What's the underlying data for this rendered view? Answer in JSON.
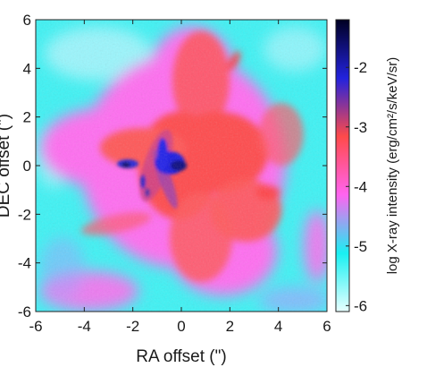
{
  "chart_data": {
    "type": "heatmap",
    "title": "",
    "xlabel": "RA offset (\")",
    "ylabel": "DEC offset (\")",
    "xlim": [
      -6,
      6
    ],
    "ylim": [
      -6,
      6
    ],
    "xticks": [
      -6,
      -4,
      -2,
      0,
      2,
      4,
      6
    ],
    "yticks": [
      -6,
      -4,
      -2,
      0,
      2,
      4,
      6
    ],
    "xtick_labels": [
      "-6",
      "-4",
      "-2",
      "0",
      "2",
      "4",
      "6"
    ],
    "ytick_labels": [
      "-6",
      "-4",
      "-2",
      "0",
      "2",
      "4",
      "6"
    ],
    "grid": false,
    "colorbar": {
      "label": "log X-ray intensity (erg/cm²/s/keV/sr)",
      "range": [
        -6.1,
        -1.2
      ],
      "ticks": [
        -6,
        -5,
        -4,
        -3,
        -2
      ],
      "tick_labels": [
        "-6",
        "-5",
        "-4",
        "-3",
        "-2"
      ],
      "colors": [
        "#e8ffff",
        "#19f0f2",
        "#ff64f0",
        "#ff4a4a",
        "#2222dd",
        "#000022"
      ]
    },
    "description_values": {
      "background_level": -5,
      "diffuse_emission_level": -3.8,
      "bright_filament_level": -3,
      "core_peak_level": -2
    }
  }
}
